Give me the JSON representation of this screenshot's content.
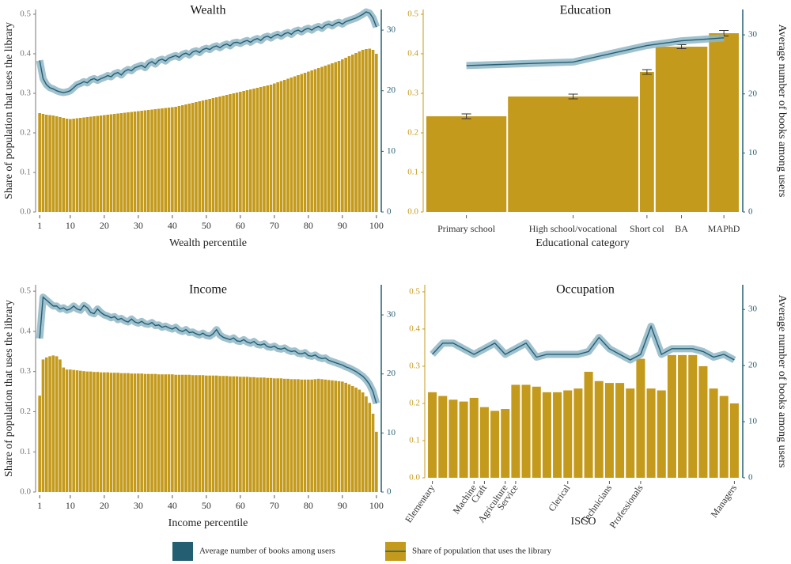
{
  "chart_data": [
    {
      "type": "bar_line",
      "title": "Wealth",
      "xlabel": "Wealth percentile",
      "ylabel": "Share of population that uses the library",
      "x": [
        1,
        2,
        3,
        4,
        5,
        6,
        7,
        8,
        9,
        10,
        11,
        12,
        13,
        14,
        15,
        16,
        17,
        18,
        19,
        20,
        21,
        22,
        23,
        24,
        25,
        26,
        27,
        28,
        29,
        30,
        31,
        32,
        33,
        34,
        35,
        36,
        37,
        38,
        39,
        40,
        41,
        42,
        43,
        44,
        45,
        46,
        47,
        48,
        49,
        50,
        51,
        52,
        53,
        54,
        55,
        56,
        57,
        58,
        59,
        60,
        61,
        62,
        63,
        64,
        65,
        66,
        67,
        68,
        69,
        70,
        71,
        72,
        73,
        74,
        75,
        76,
        77,
        78,
        79,
        80,
        81,
        82,
        83,
        84,
        85,
        86,
        87,
        88,
        89,
        90,
        91,
        92,
        93,
        94,
        95,
        96,
        97,
        98,
        99,
        100
      ],
      "xlim": [
        0.5,
        100.5
      ],
      "xticks": [
        1,
        10,
        20,
        30,
        40,
        50,
        60,
        70,
        80,
        90,
        100
      ],
      "ylim": [
        0,
        0.512
      ],
      "yticks": [
        {
          "value": 0,
          "label": "0.0"
        },
        0.1,
        0.2,
        0.3,
        0.4,
        0.5
      ],
      "y2lim": [
        0,
        33.4
      ],
      "y2ticks": [
        0,
        10,
        20,
        30
      ],
      "series": [
        {
          "type": "bar",
          "color": "#c49a1c",
          "values": [
            0.25,
            0.248,
            0.246,
            0.245,
            0.244,
            0.242,
            0.24,
            0.238,
            0.236,
            0.235,
            0.236,
            0.237,
            0.238,
            0.239,
            0.24,
            0.241,
            0.242,
            0.243,
            0.244,
            0.245,
            0.246,
            0.247,
            0.248,
            0.249,
            0.25,
            0.251,
            0.252,
            0.253,
            0.254,
            0.255,
            0.256,
            0.257,
            0.258,
            0.259,
            0.26,
            0.261,
            0.262,
            0.263,
            0.264,
            0.265,
            0.266,
            0.268,
            0.27,
            0.272,
            0.274,
            0.276,
            0.278,
            0.28,
            0.282,
            0.284,
            0.286,
            0.288,
            0.29,
            0.292,
            0.294,
            0.296,
            0.298,
            0.3,
            0.302,
            0.304,
            0.306,
            0.308,
            0.31,
            0.312,
            0.314,
            0.316,
            0.318,
            0.32,
            0.322,
            0.325,
            0.328,
            0.331,
            0.334,
            0.337,
            0.34,
            0.343,
            0.346,
            0.349,
            0.352,
            0.355,
            0.358,
            0.361,
            0.364,
            0.367,
            0.37,
            0.373,
            0.376,
            0.379,
            0.382,
            0.386,
            0.39,
            0.394,
            0.398,
            0.402,
            0.406,
            0.41,
            0.412,
            0.413,
            0.41,
            0.4
          ]
        },
        {
          "type": "line",
          "axis": "y2",
          "color": "#245e72",
          "values": [
            25,
            22,
            21,
            20.5,
            20.3,
            20,
            19.8,
            19.7,
            19.8,
            20,
            20.5,
            21,
            21.2,
            21.5,
            21.3,
            21.8,
            22,
            21.7,
            22,
            22.2,
            22.5,
            22.3,
            22.8,
            23,
            22.6,
            23.2,
            23.5,
            23.3,
            23.8,
            24,
            24.2,
            23.8,
            24.5,
            24.8,
            24.4,
            25,
            25.2,
            24.9,
            25.4,
            25.6,
            25.8,
            25.5,
            26,
            26.2,
            25.9,
            26.4,
            26.6,
            26.3,
            26.8,
            27,
            26.8,
            27.2,
            27.4,
            27.1,
            27.5,
            27.7,
            27.4,
            27.9,
            28,
            27.8,
            28.1,
            28.3,
            28,
            28.4,
            28.6,
            28.3,
            28.8,
            29,
            28.7,
            29.1,
            29.3,
            29,
            29.4,
            29.6,
            29.3,
            29.8,
            30,
            29.7,
            30.1,
            30.3,
            30,
            30.4,
            30.6,
            30.3,
            30.8,
            31,
            30.7,
            31.1,
            31.3,
            31,
            31.4,
            31.6,
            31.8,
            32,
            32.3,
            32.6,
            33,
            32.8,
            32,
            30.5
          ]
        }
      ]
    },
    {
      "type": "bar_line",
      "title": "Education",
      "xlabel": "Educational category",
      "y2label": "Average number of books among users",
      "categories": [
        "Primary school",
        "High school/vocational",
        "Short col",
        "BA",
        "MAPhD"
      ],
      "bar_shares": [
        0.26,
        0.42,
        0.05,
        0.17,
        0.1
      ],
      "ylim": [
        0,
        0.512
      ],
      "yticks": [
        {
          "value": 0,
          "label": "0.0"
        },
        0.1,
        0.2,
        0.3,
        0.4,
        0.5
      ],
      "y2lim": [
        0,
        34.3
      ],
      "y2ticks": [
        0,
        10,
        20,
        30
      ],
      "series": [
        {
          "type": "bar",
          "color": "#c49a1c",
          "values": [
            0.242,
            0.292,
            0.354,
            0.418,
            0.452
          ],
          "errors": [
            0.006,
            0.006,
            0.006,
            0.005,
            0.007
          ]
        },
        {
          "type": "line",
          "axis": "y2",
          "color": "#245e72",
          "values": [
            24.8,
            25.4,
            28.2,
            29,
            29.5
          ]
        }
      ]
    },
    {
      "type": "bar_line",
      "title": "Income",
      "xlabel": "Income percentile",
      "ylabel": "Share of population that uses the library",
      "x": [
        1,
        2,
        3,
        4,
        5,
        6,
        7,
        8,
        9,
        10,
        11,
        12,
        13,
        14,
        15,
        16,
        17,
        18,
        19,
        20,
        21,
        22,
        23,
        24,
        25,
        26,
        27,
        28,
        29,
        30,
        31,
        32,
        33,
        34,
        35,
        36,
        37,
        38,
        39,
        40,
        41,
        42,
        43,
        44,
        45,
        46,
        47,
        48,
        49,
        50,
        51,
        52,
        53,
        54,
        55,
        56,
        57,
        58,
        59,
        60,
        61,
        62,
        63,
        64,
        65,
        66,
        67,
        68,
        69,
        70,
        71,
        72,
        73,
        74,
        75,
        76,
        77,
        78,
        79,
        80,
        81,
        82,
        83,
        84,
        85,
        86,
        87,
        88,
        89,
        90,
        91,
        92,
        93,
        94,
        95,
        96,
        97,
        98,
        99,
        100
      ],
      "xlim": [
        0.5,
        100.5
      ],
      "xticks": [
        1,
        10,
        20,
        30,
        40,
        50,
        60,
        70,
        80,
        90,
        100
      ],
      "ylim": [
        0,
        0.516
      ],
      "yticks": [
        {
          "value": 0,
          "label": "0.0"
        },
        0.1,
        0.2,
        0.3,
        0.4,
        0.5
      ],
      "y2lim": [
        0,
        35.1
      ],
      "y2ticks": [
        0,
        10,
        20,
        30
      ],
      "series": [
        {
          "type": "bar",
          "color": "#c49a1c",
          "values": [
            0.24,
            0.33,
            0.335,
            0.338,
            0.34,
            0.338,
            0.33,
            0.31,
            0.305,
            0.305,
            0.304,
            0.303,
            0.302,
            0.301,
            0.3,
            0.3,
            0.299,
            0.299,
            0.298,
            0.298,
            0.298,
            0.297,
            0.297,
            0.297,
            0.296,
            0.296,
            0.296,
            0.295,
            0.295,
            0.295,
            0.295,
            0.294,
            0.294,
            0.294,
            0.294,
            0.293,
            0.293,
            0.293,
            0.293,
            0.293,
            0.292,
            0.292,
            0.292,
            0.292,
            0.292,
            0.291,
            0.291,
            0.291,
            0.291,
            0.29,
            0.29,
            0.29,
            0.29,
            0.289,
            0.289,
            0.289,
            0.288,
            0.288,
            0.288,
            0.287,
            0.287,
            0.287,
            0.286,
            0.286,
            0.285,
            0.285,
            0.285,
            0.284,
            0.284,
            0.283,
            0.283,
            0.283,
            0.282,
            0.282,
            0.281,
            0.281,
            0.281,
            0.28,
            0.28,
            0.28,
            0.28,
            0.281,
            0.282,
            0.281,
            0.28,
            0.279,
            0.278,
            0.277,
            0.276,
            0.275,
            0.272,
            0.268,
            0.264,
            0.26,
            0.255,
            0.248,
            0.238,
            0.222,
            0.195,
            0.15
          ]
        },
        {
          "type": "line",
          "axis": "y2",
          "color": "#245e72",
          "values": [
            26,
            33,
            32.5,
            32,
            31.5,
            31.5,
            31,
            31.2,
            30.8,
            31,
            31.5,
            31,
            30.8,
            31.6,
            31.2,
            30.4,
            30.2,
            31,
            30.4,
            30,
            29.8,
            29.5,
            29.7,
            29.2,
            29.4,
            29,
            28.8,
            29.3,
            28.8,
            28.6,
            28.9,
            28.5,
            28.4,
            28.7,
            28.2,
            28.3,
            27.9,
            28.1,
            27.8,
            27.6,
            27.9,
            27.4,
            27.2,
            27.5,
            27,
            27.1,
            26.8,
            26.6,
            26.9,
            26.5,
            26.4,
            26.8,
            27.5,
            26.6,
            26.2,
            26,
            25.8,
            26.1,
            25.6,
            25.5,
            25.8,
            25.4,
            25.2,
            25.5,
            25,
            24.9,
            25.1,
            24.6,
            24.5,
            24.7,
            24.3,
            24.2,
            24.4,
            24,
            23.8,
            23.9,
            23.5,
            23.4,
            23.6,
            23.1,
            23,
            23.2,
            22.8,
            22.6,
            22.7,
            22.3,
            22.1,
            21.9,
            21.7,
            21.5,
            21.2,
            21,
            20.7,
            20.4,
            20,
            19.6,
            19,
            18.2,
            17,
            15
          ]
        }
      ]
    },
    {
      "type": "bar_line",
      "title": "Occupation",
      "xlabel": "ISCO",
      "y2label": "Average number of books among users",
      "categories": [
        "Elementary",
        null,
        null,
        null,
        "Machine",
        "Craft",
        null,
        "Agriculture",
        "Service",
        null,
        null,
        null,
        null,
        "Clerical",
        null,
        null,
        null,
        "Technicians",
        null,
        null,
        "Professionals",
        null,
        null,
        null,
        null,
        null,
        null,
        null,
        null,
        "Managers"
      ],
      "ylim": [
        0,
        0.519
      ],
      "yticks": [
        {
          "value": 0,
          "label": "0.0"
        },
        0.1,
        0.2,
        0.3,
        0.4,
        0.5
      ],
      "y2lim": [
        0,
        34.4
      ],
      "y2ticks": [
        0,
        10,
        20,
        30
      ],
      "series": [
        {
          "type": "bar",
          "color": "#c49a1c",
          "values": [
            0.23,
            0.22,
            0.21,
            0.205,
            0.215,
            0.19,
            0.18,
            0.185,
            0.25,
            0.25,
            0.245,
            0.23,
            0.23,
            0.235,
            0.24,
            0.285,
            0.26,
            0.255,
            0.255,
            0.24,
            0.32,
            0.24,
            0.235,
            0.33,
            0.33,
            0.33,
            0.3,
            0.24,
            0.22,
            0.2
          ]
        },
        {
          "type": "line",
          "axis": "y2",
          "color": "#245e72",
          "values": [
            22,
            24,
            24,
            23,
            22,
            23,
            24,
            22,
            23,
            24,
            21.5,
            22,
            22,
            22,
            22,
            22.5,
            25,
            23,
            22,
            21,
            22,
            27,
            22,
            23,
            23,
            23,
            22.5,
            21.5,
            22,
            21
          ]
        }
      ]
    }
  ],
  "legend": {
    "entries": [
      {
        "name": "Average number of books among users",
        "color": "#245e72"
      },
      {
        "name": "Share of population that uses the library",
        "color": "#c49a1c"
      }
    ]
  }
}
